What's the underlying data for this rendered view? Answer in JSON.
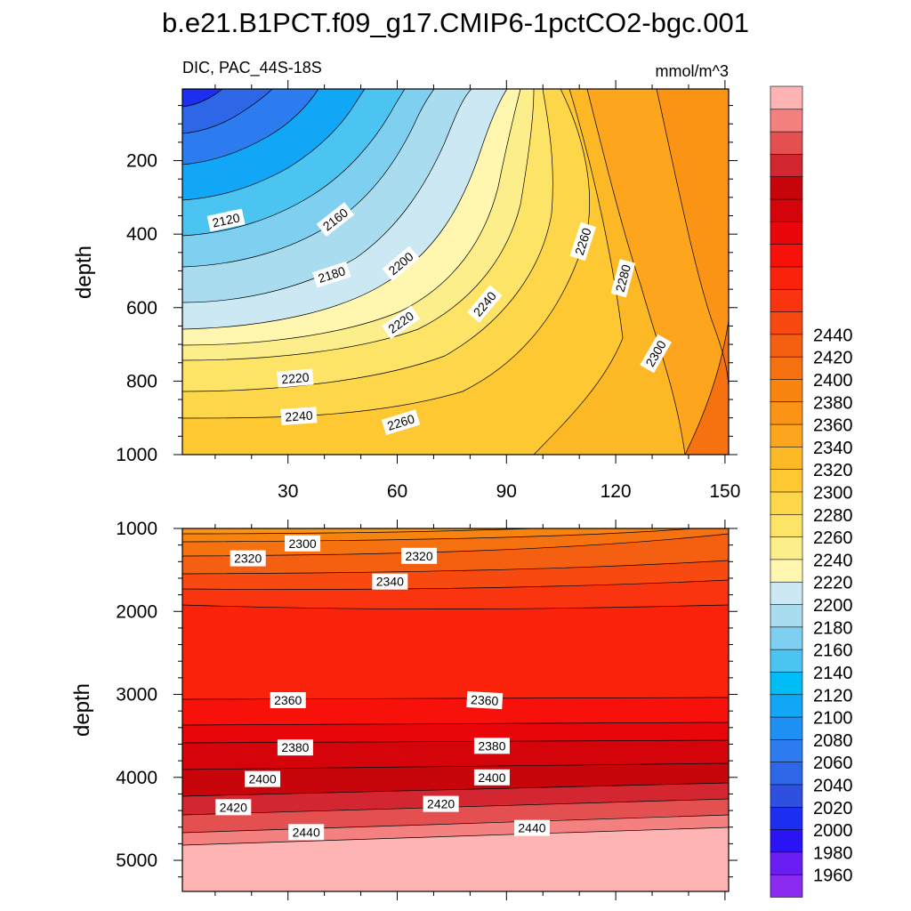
{
  "chart_data": {
    "type": "contour",
    "title": "b.e21.B1PCT.f09_g17.CMIP6-1pctCO2-bgc.001",
    "left_subtitle": "DIC, PAC_44S-18S",
    "right_subtitle": "mmol/m^3",
    "colorbar": {
      "levels": [
        1960,
        1980,
        2000,
        2020,
        2040,
        2060,
        2080,
        2100,
        2120,
        2140,
        2160,
        2180,
        2200,
        2220,
        2240,
        2260,
        2280,
        2300,
        2320,
        2340,
        2360,
        2380,
        2400,
        2420,
        2440
      ],
      "labels": [
        "1960",
        "1980",
        "2000",
        "2020",
        "2040",
        "2060",
        "2080",
        "2100",
        "2120",
        "2140",
        "2160",
        "2180",
        "2200",
        "2220",
        "2240",
        "2260",
        "2280",
        "2300",
        "2320",
        "2340",
        "2360",
        "2380",
        "2400",
        "2420",
        "2440"
      ],
      "colors": [
        "#8c2bf0",
        "#6a1ef2",
        "#2a14f5",
        "#1c2ff0",
        "#2f4fe0",
        "#2e66e8",
        "#2c7cf0",
        "#1e90f4",
        "#12a6f6",
        "#00bdf6",
        "#4cc4f2",
        "#7fcff0",
        "#a9dcef",
        "#cbe8f3",
        "#fff6b0",
        "#fdee8c",
        "#fde466",
        "#fdd64a",
        "#fdc832",
        "#fdb825",
        "#fda51c",
        "#fb9414",
        "#f8830e",
        "#f67110",
        "#f55f12",
        "#f84a10",
        "#fa340e",
        "#fb220c",
        "#f8100a",
        "#e8060a",
        "#d4040a",
        "#c8050a",
        "#d42630",
        "#e45050",
        "#f48080",
        "#ffb4b4"
      ]
    },
    "panels": [
      {
        "name": "upper",
        "xlabel": "",
        "ylabel": "depth",
        "xlim": [
          1,
          151
        ],
        "ylim": [
          1000,
          5
        ],
        "x_ticks": [
          30,
          60,
          90,
          120,
          150
        ],
        "x_tick_labels": [
          "30",
          "60",
          "90",
          "120",
          "150"
        ],
        "y_ticks": [
          200,
          400,
          600,
          800,
          1000
        ],
        "y_tick_labels": [
          "200",
          "400",
          "600",
          "800",
          "1000"
        ],
        "contour_labels": [
          {
            "text": "2120",
            "x": 13,
            "y": 362,
            "angle": -12
          },
          {
            "text": "2160",
            "x": 43,
            "y": 360,
            "angle": -38
          },
          {
            "text": "2180",
            "x": 42,
            "y": 510,
            "angle": -18
          },
          {
            "text": "2200",
            "x": 61,
            "y": 480,
            "angle": -40
          },
          {
            "text": "2220",
            "x": 61,
            "y": 640,
            "angle": -35
          },
          {
            "text": "2240",
            "x": 84,
            "y": 590,
            "angle": -50
          },
          {
            "text": "2260",
            "x": 111,
            "y": 420,
            "angle": -72
          },
          {
            "text": "2280",
            "x": 122,
            "y": 520,
            "angle": -75
          },
          {
            "text": "2220",
            "x": 32,
            "y": 792,
            "angle": -5
          },
          {
            "text": "2240",
            "x": 33,
            "y": 895,
            "angle": -4
          },
          {
            "text": "2260",
            "x": 61,
            "y": 912,
            "angle": -17
          },
          {
            "text": "2300",
            "x": 131,
            "y": 725,
            "angle": -60
          }
        ]
      },
      {
        "name": "lower",
        "xlabel": "",
        "ylabel": "depth",
        "xlim": [
          1,
          151
        ],
        "ylim": [
          5375,
          1000
        ],
        "x_ticks": [
          30,
          60,
          90,
          120,
          150
        ],
        "y_ticks": [
          1000,
          2000,
          3000,
          4000,
          5000
        ],
        "y_tick_labels": [
          "1000",
          "2000",
          "3000",
          "4000",
          "5000"
        ],
        "contour_labels": [
          {
            "text": "2300",
            "x": 34,
            "y": 1180,
            "angle": 0
          },
          {
            "text": "2320",
            "x": 19,
            "y": 1360,
            "angle": 0
          },
          {
            "text": "2320",
            "x": 66,
            "y": 1330,
            "angle": 0
          },
          {
            "text": "2340",
            "x": 58,
            "y": 1640,
            "angle": 0
          },
          {
            "text": "2360",
            "x": 30,
            "y": 3070,
            "angle": 0
          },
          {
            "text": "2360",
            "x": 84,
            "y": 3070,
            "angle": 3
          },
          {
            "text": "2380",
            "x": 32,
            "y": 3640,
            "angle": 0
          },
          {
            "text": "2380",
            "x": 86,
            "y": 3620,
            "angle": 0
          },
          {
            "text": "2400",
            "x": 23,
            "y": 4020,
            "angle": 0
          },
          {
            "text": "2400",
            "x": 86,
            "y": 4000,
            "angle": 0
          },
          {
            "text": "2420",
            "x": 15,
            "y": 4360,
            "angle": 0
          },
          {
            "text": "2420",
            "x": 72,
            "y": 4320,
            "angle": 0
          },
          {
            "text": "2440",
            "x": 35,
            "y": 4660,
            "angle": 0
          },
          {
            "text": "2440",
            "x": 97,
            "y": 4610,
            "angle": 0
          }
        ]
      }
    ]
  }
}
